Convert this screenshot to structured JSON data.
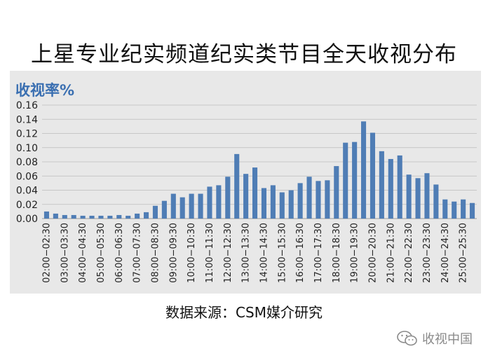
{
  "title": "上星专业纪实频道纪实类节目全天收视分布",
  "source": "数据来源：CSM媒介研究",
  "brand": {
    "name": "收视中国",
    "icon": "wechat-icon"
  },
  "colors": {
    "bar": "#4f7db5",
    "panel": "#e8e8e8",
    "ylabel": "#3a6fb1"
  },
  "chart_data": {
    "type": "bar",
    "title": "上星专业纪实频道纪实类节目全天收视分布",
    "ylabel": "收视率%",
    "xlabel": "",
    "ylim": [
      0,
      0.16
    ],
    "yticks": [
      "0.00",
      "0.02",
      "0.04",
      "0.06",
      "0.08",
      "0.10",
      "0.12",
      "0.14",
      "0.16"
    ],
    "grid": true,
    "legend": "none",
    "x_tick_labels": [
      "02:00−02:30",
      "03:00−03:30",
      "04:00−04:30",
      "05:00−05:30",
      "06:00−06:30",
      "07:00−07:30",
      "08:00−08:30",
      "09:00−09:30",
      "10:00−10:30",
      "11:00−11:30",
      "12:00−12:30",
      "13:00−13:30",
      "14:00−14:30",
      "15:00−15:30",
      "16:00−16:30",
      "17:00−17:30",
      "18:00−18:30",
      "19:00−19:30",
      "20:00−20:30",
      "21:00−21:30",
      "22:00−22:30",
      "23:00−23:30",
      "24:00−24:30",
      "25:00−25:30"
    ],
    "categories": [
      "02:00",
      "02:30",
      "03:00",
      "03:30",
      "04:00",
      "04:30",
      "05:00",
      "05:30",
      "06:00",
      "06:30",
      "07:00",
      "07:30",
      "08:00",
      "08:30",
      "09:00",
      "09:30",
      "10:00",
      "10:30",
      "11:00",
      "11:30",
      "12:00",
      "12:30",
      "13:00",
      "13:30",
      "14:00",
      "14:30",
      "15:00",
      "15:30",
      "16:00",
      "16:30",
      "17:00",
      "17:30",
      "18:00",
      "18:30",
      "19:00",
      "19:30",
      "20:00",
      "20:30",
      "21:00",
      "21:30",
      "22:00",
      "22:30",
      "23:00",
      "23:30",
      "24:00",
      "24:30",
      "25:00",
      "25:30"
    ],
    "values": [
      0.01,
      0.007,
      0.005,
      0.005,
      0.004,
      0.004,
      0.004,
      0.004,
      0.005,
      0.004,
      0.007,
      0.009,
      0.018,
      0.025,
      0.035,
      0.03,
      0.035,
      0.035,
      0.045,
      0.047,
      0.059,
      0.091,
      0.063,
      0.072,
      0.043,
      0.047,
      0.037,
      0.04,
      0.05,
      0.059,
      0.053,
      0.054,
      0.074,
      0.107,
      0.108,
      0.137,
      0.121,
      0.095,
      0.084,
      0.089,
      0.062,
      0.057,
      0.064,
      0.048,
      0.027,
      0.024,
      0.027,
      0.022
    ]
  }
}
